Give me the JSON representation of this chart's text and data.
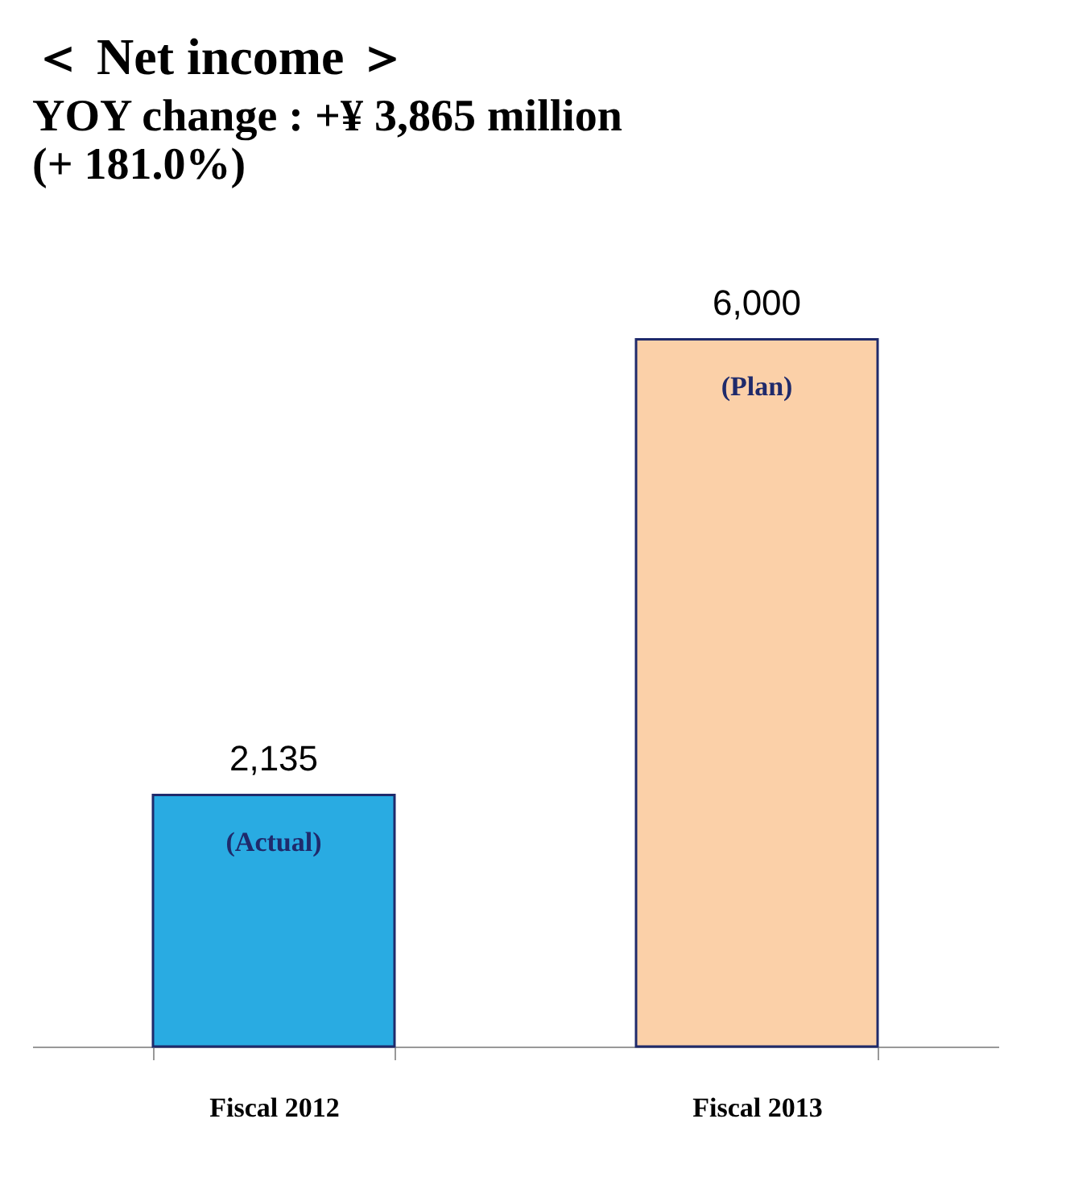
{
  "chart_data": {
    "type": "bar",
    "title": "＜ Net income ＞",
    "subtitle": "YOY change : +¥ 3,865 million\n(+ 181.0%)",
    "categories": [
      "Fiscal 2012",
      "Fiscal 2013"
    ],
    "values": [
      2135,
      6000
    ],
    "colors": [
      "#29abe2",
      "#fbd0a8"
    ],
    "value_labels": [
      "2,135",
      "6,000"
    ],
    "grid": false,
    "tick_labels": "x",
    "annotations": [
      "(Actual)",
      "(Plan)"
    ]
  }
}
